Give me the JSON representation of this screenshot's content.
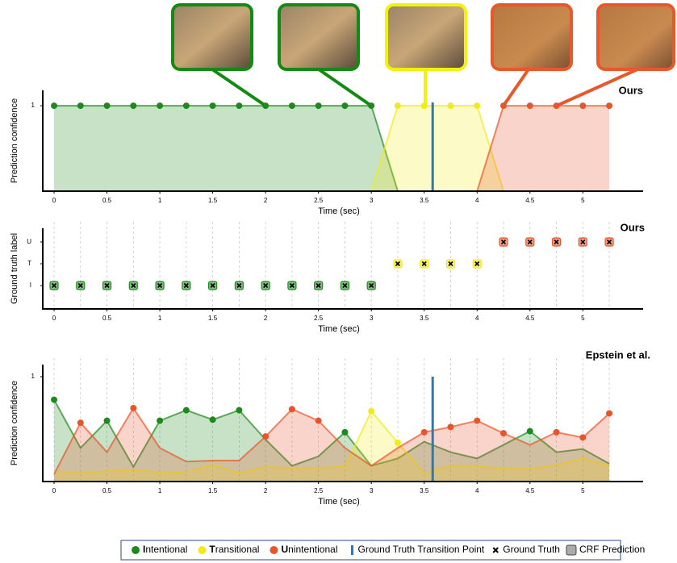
{
  "chart_data": [
    {
      "type": "area",
      "title": "Ours",
      "ylabel": "Prediction confidence",
      "xlabel": "Time (sec)",
      "x": [
        0,
        0.25,
        0.5,
        0.75,
        1,
        1.25,
        1.5,
        1.75,
        2,
        2.25,
        2.5,
        2.75,
        3,
        3.25,
        3.5,
        3.75,
        4,
        4.25,
        4.5,
        4.75,
        5,
        5.25
      ],
      "series": [
        {
          "name": "Intentional",
          "color": "#1e8a1e",
          "values": [
            1,
            1,
            1,
            1,
            1,
            1,
            1,
            1,
            1,
            1,
            1,
            1,
            1,
            0,
            null,
            null,
            null,
            null,
            null,
            null,
            null,
            null
          ]
        },
        {
          "name": "Transitional",
          "color": "#f2ea1c",
          "values": [
            null,
            null,
            null,
            null,
            null,
            null,
            null,
            null,
            null,
            null,
            null,
            null,
            0,
            1,
            1,
            1,
            1,
            0,
            null,
            null,
            null,
            null
          ]
        },
        {
          "name": "Unintentional",
          "color": "#e8552a",
          "values": [
            null,
            null,
            null,
            null,
            null,
            null,
            null,
            null,
            null,
            null,
            null,
            null,
            null,
            null,
            null,
            null,
            0,
            1,
            1,
            1,
            1,
            1
          ]
        }
      ],
      "transition": 3.58,
      "transition_color": "#2a7ab8",
      "xlim": [
        -0.107,
        5.57
      ],
      "xticks": [
        0,
        0.5,
        1,
        1.5,
        2,
        2.5,
        3,
        3.5,
        4,
        4.5,
        5
      ],
      "ylim": [
        0,
        1.18
      ],
      "yticks": [
        1
      ]
    },
    {
      "type": "category-scatter",
      "title": "Ours",
      "ylabel": "Ground truth label",
      "xlabel": "Time (sec)",
      "x": [
        0,
        0.25,
        0.5,
        0.75,
        1,
        1.25,
        1.5,
        1.75,
        2,
        2.25,
        2.5,
        2.75,
        3,
        3.25,
        3.5,
        3.75,
        4,
        4.25,
        4.5,
        4.75,
        5,
        5.25
      ],
      "y_categories": [
        "I",
        "T",
        "U"
      ],
      "colors": [
        "#1e8a1e",
        "#f2ea1c",
        "#e8552a"
      ],
      "labels": [
        "I",
        "I",
        "I",
        "I",
        "I",
        "I",
        "I",
        "I",
        "I",
        "I",
        "I",
        "I",
        "I",
        "T",
        "T",
        "T",
        "T",
        "U",
        "U",
        "U",
        "U",
        "U"
      ],
      "xlim": [
        -0.107,
        5.57
      ],
      "xticks": [
        0,
        0.5,
        1,
        1.5,
        2,
        2.5,
        3,
        3.5,
        4,
        4.5,
        5
      ],
      "grid": true
    },
    {
      "type": "area",
      "title": "Epstein et al.",
      "ylabel": "Prediction confidence",
      "xlabel": "Time (sec)",
      "x": [
        0,
        0.25,
        0.5,
        0.75,
        1,
        1.25,
        1.5,
        1.75,
        2,
        2.25,
        2.5,
        2.75,
        3,
        3.25,
        3.5,
        3.75,
        4,
        4.25,
        4.5,
        4.75,
        5,
        5.25
      ],
      "series": [
        {
          "name": "Intentional",
          "color": "#1e8a1e",
          "values": [
            0.78,
            0.32,
            0.58,
            0.14,
            0.58,
            0.68,
            0.59,
            0.68,
            0.4,
            0.15,
            0.24,
            0.47,
            0.15,
            0.22,
            0.38,
            0.28,
            0.22,
            0.35,
            0.48,
            0.28,
            0.31,
            0.17
          ]
        },
        {
          "name": "Transitional",
          "color": "#f2ea1c",
          "values": [
            0.1,
            0.08,
            0.1,
            0.11,
            0.09,
            0.09,
            0.16,
            0.08,
            0.14,
            0.13,
            0.13,
            0.14,
            0.67,
            0.37,
            0.08,
            0.15,
            0.15,
            0.12,
            0.12,
            0.16,
            0.22,
            0.15
          ]
        },
        {
          "name": "Unintentional",
          "color": "#e8552a",
          "values": [
            0.07,
            0.56,
            0.28,
            0.7,
            0.32,
            0.19,
            0.2,
            0.2,
            0.43,
            0.69,
            0.58,
            0.32,
            0.15,
            0.32,
            0.47,
            0.52,
            0.58,
            0.46,
            0.35,
            0.47,
            0.42,
            0.65
          ]
        }
      ],
      "transition": 3.58,
      "transition_color": "#2a7ab8",
      "xlim": [
        -0.107,
        5.57
      ],
      "xticks": [
        0,
        0.5,
        1,
        1.5,
        2,
        2.5,
        3,
        3.5,
        4,
        4.5,
        5
      ],
      "grid": true,
      "ylim": [
        0,
        1.115
      ],
      "yticks": [
        1
      ]
    }
  ],
  "legend": {
    "transition": "Ground Truth Transition Point",
    "ground_truth": "Ground Truth",
    "crf": "CRF Prediction"
  }
}
